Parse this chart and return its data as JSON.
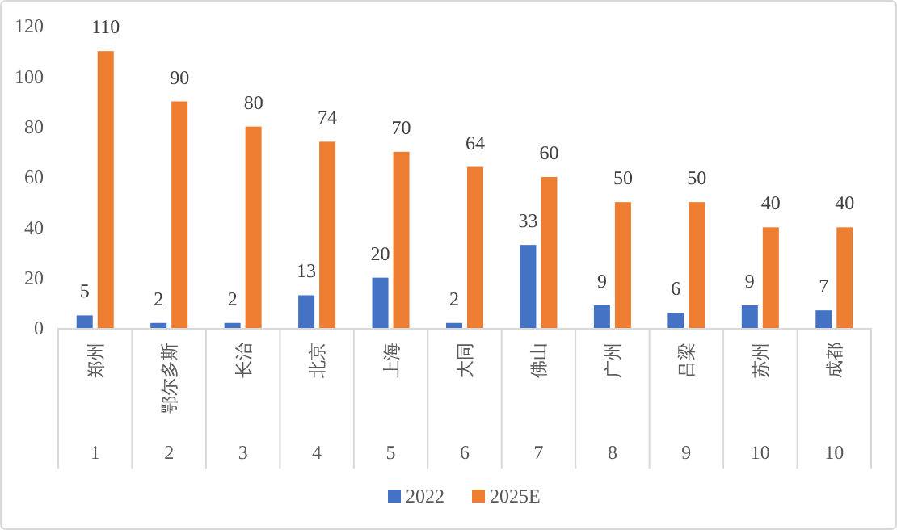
{
  "chart_data": {
    "type": "bar",
    "categories": [
      "郑州",
      "鄂尔多斯",
      "长治",
      "北京",
      "上海",
      "大同",
      "佛山",
      "广州",
      "吕梁",
      "苏州",
      "成都"
    ],
    "series": [
      {
        "name": "2022",
        "color": "#4472c4",
        "values": [
          5,
          2,
          2,
          13,
          20,
          2,
          33,
          9,
          6,
          9,
          7
        ]
      },
      {
        "name": "2025E",
        "color": "#ed7d31",
        "values": [
          110,
          90,
          80,
          74,
          70,
          64,
          60,
          50,
          50,
          40,
          40
        ]
      }
    ],
    "ylim": [
      0,
      120
    ],
    "yticks": [
      0,
      20,
      40,
      60,
      80,
      100,
      120
    ],
    "grid": false,
    "legend": "bottom",
    "data_labels": true,
    "annotations": [
      "1",
      "2",
      "3",
      "4",
      "5",
      "6",
      "7",
      "8",
      "9",
      "10",
      "10"
    ]
  }
}
